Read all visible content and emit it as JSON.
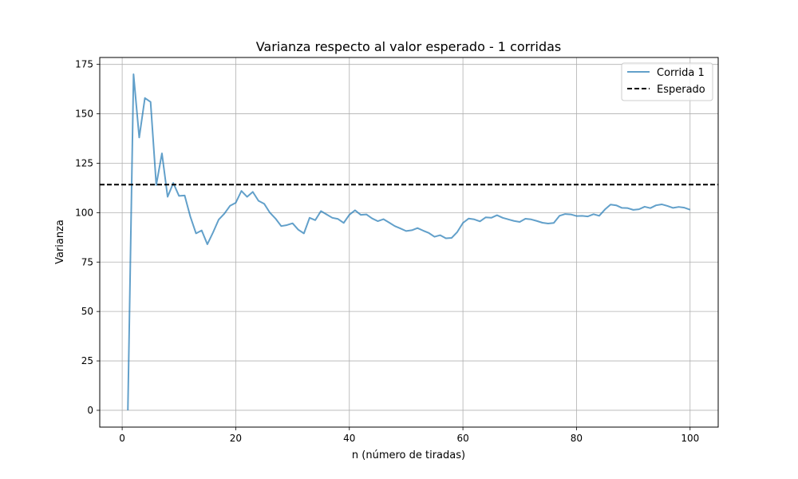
{
  "chart_data": {
    "type": "line",
    "title": "Varianza respecto al valor esperado - 1 corridas",
    "xlabel": "n (número de tiradas)",
    "ylabel": "Varianza",
    "xlim": [
      -3.95,
      104.95
    ],
    "ylim": [
      -8.5,
      178.5
    ],
    "xticks": [
      0,
      20,
      40,
      60,
      80,
      100
    ],
    "yticks": [
      0,
      25,
      50,
      75,
      100,
      125,
      150,
      175
    ],
    "grid": true,
    "legend_position": "top-right",
    "series": [
      {
        "name": "Corrida 1",
        "color": "#1f77b4",
        "alpha": 0.7,
        "x": [
          1,
          2,
          3,
          4,
          5,
          6,
          7,
          8,
          9,
          10,
          11,
          12,
          13,
          14,
          15,
          16,
          17,
          18,
          19,
          20,
          21,
          22,
          23,
          24,
          25,
          26,
          27,
          28,
          29,
          30,
          31,
          32,
          33,
          34,
          35,
          36,
          37,
          38,
          39,
          40,
          41,
          42,
          43,
          44,
          45,
          46,
          47,
          48,
          49,
          50,
          51,
          52,
          53,
          54,
          55,
          56,
          57,
          58,
          59,
          60,
          61,
          62,
          63,
          64,
          65,
          66,
          67,
          68,
          69,
          70,
          71,
          72,
          73,
          74,
          75,
          76,
          77,
          78,
          79,
          80,
          81,
          82,
          83,
          84,
          85,
          86,
          87,
          88,
          89,
          90,
          91,
          92,
          93,
          94,
          95,
          96,
          97,
          98,
          99,
          100
        ],
        "y": [
          0,
          170,
          138,
          158,
          156,
          114,
          130,
          108,
          115,
          108.5,
          108.7,
          98,
          89.5,
          91,
          84,
          90,
          96.5,
          99.5,
          103.5,
          105,
          111,
          108,
          110.5,
          106,
          104.5,
          100,
          97,
          93.2,
          93.7,
          94.6,
          91.4,
          89.5,
          97.4,
          96.2,
          100.8,
          99.1,
          97.4,
          96.8,
          94.8,
          98.9,
          101.2,
          98.9,
          99.1,
          97.1,
          95.7,
          96.7,
          95,
          93.2,
          92,
          90.7,
          91.1,
          92.2,
          90.9,
          89.7,
          87.8,
          88.6,
          87,
          87.2,
          90.2,
          94.8,
          97,
          96.6,
          95.6,
          97.6,
          97.4,
          98.7,
          97.4,
          96.6,
          95.8,
          95.3,
          96.9,
          96.6,
          95.8,
          94.9,
          94.5,
          94.8,
          98.4,
          99.3,
          99.1,
          98.3,
          98.4,
          98.1,
          99.2,
          98.4,
          101.6,
          104.1,
          103.7,
          102.4,
          102.3,
          101.4,
          101.7,
          103,
          102.3,
          103.7,
          104.2,
          103.4,
          102.4,
          102.9,
          102.5,
          101.5
        ]
      },
      {
        "name": "Esperado",
        "color": "#000000",
        "style": "dashed",
        "y": 114.2
      }
    ]
  }
}
